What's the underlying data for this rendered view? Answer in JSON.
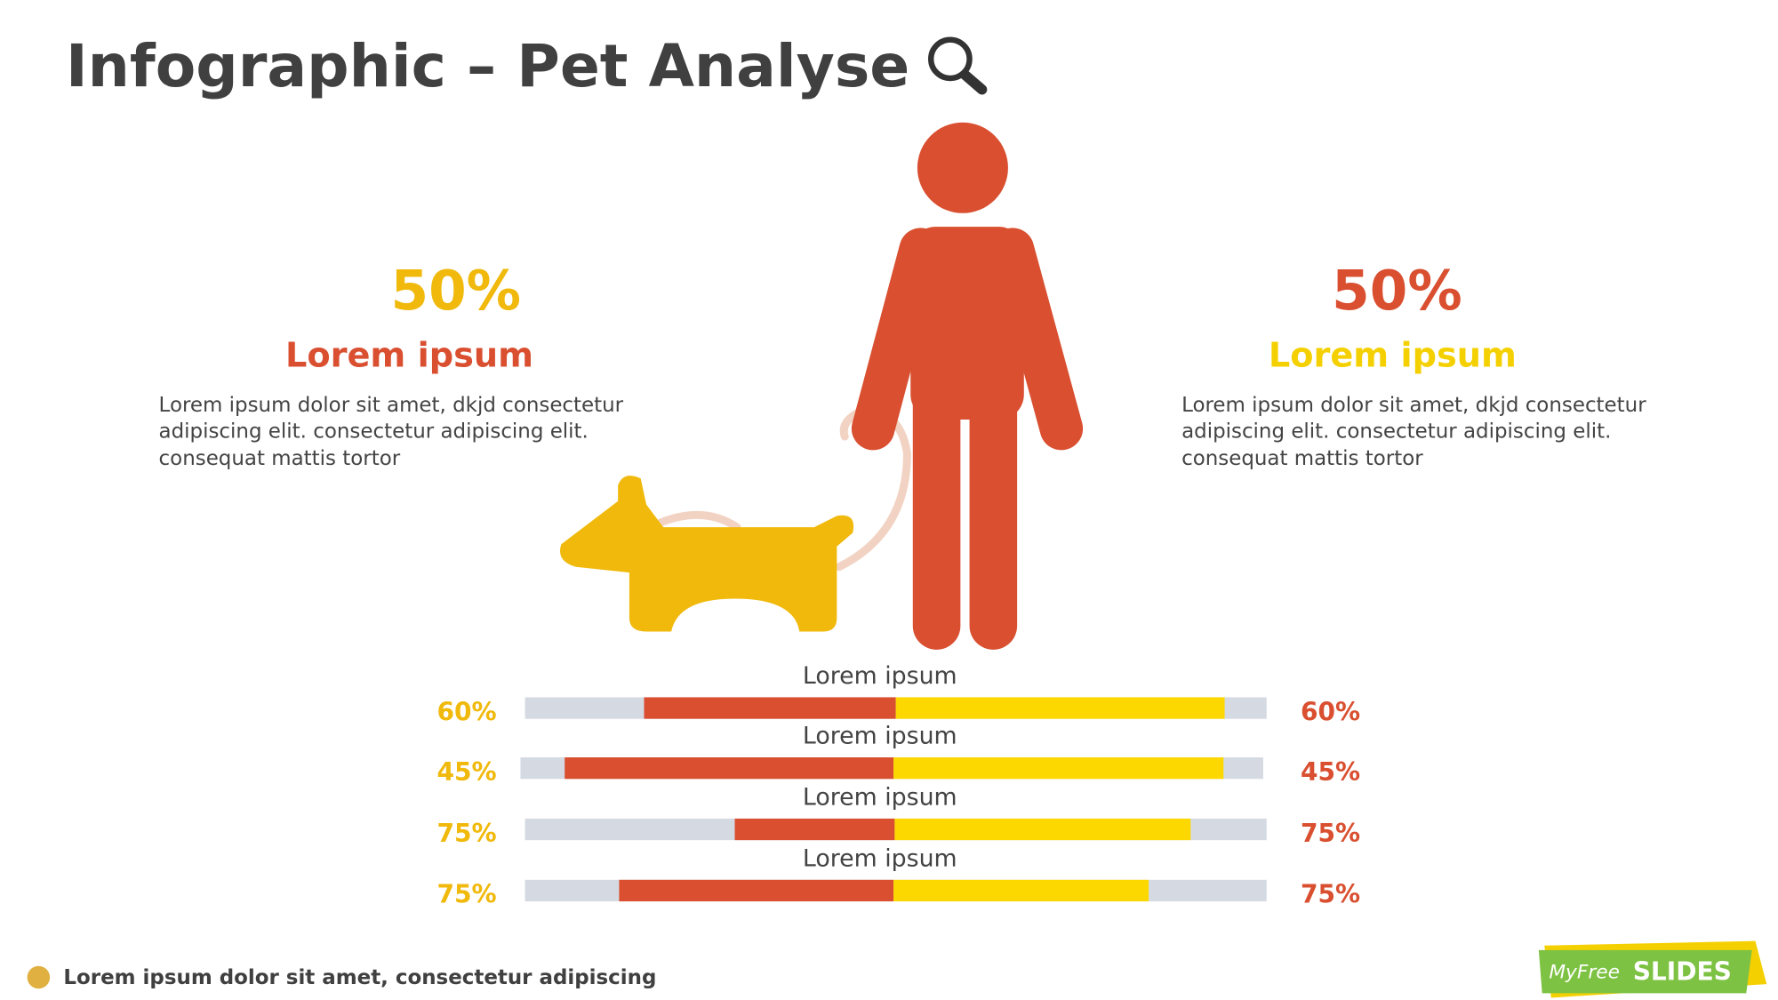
{
  "header": {
    "title": "Infographic – Pet Analyse"
  },
  "left": {
    "percent": "50%",
    "heading": "Lorem ipsum",
    "body": [
      "Lorem ipsum dolor sit amet, dkjd consectetur",
      "adipiscing elit. consectetur adipiscing elit.",
      "consequat mattis tortor"
    ]
  },
  "right": {
    "percent": "50%",
    "heading": "Lorem ipsum",
    "body": [
      "Lorem ipsum dolor sit amet, dkjd consectetur",
      "adipiscing elit. consectetur adipiscing elit.",
      "consequat mattis tortor"
    ]
  },
  "bars": [
    {
      "label": "Lorem ipsum",
      "left": "60%",
      "right": "60%"
    },
    {
      "label": "Lorem ipsum",
      "left": "45%",
      "right": "45%"
    },
    {
      "label": "Lorem ipsum",
      "left": "75%",
      "right": "75%"
    },
    {
      "label": "Lorem ipsum",
      "left": "75%",
      "right": "75%"
    }
  ],
  "footer": {
    "note": "Lorem ipsum dolor sit amet, consectetur adipiscing",
    "logo": [
      "MyFree",
      "SLIDES"
    ]
  }
}
